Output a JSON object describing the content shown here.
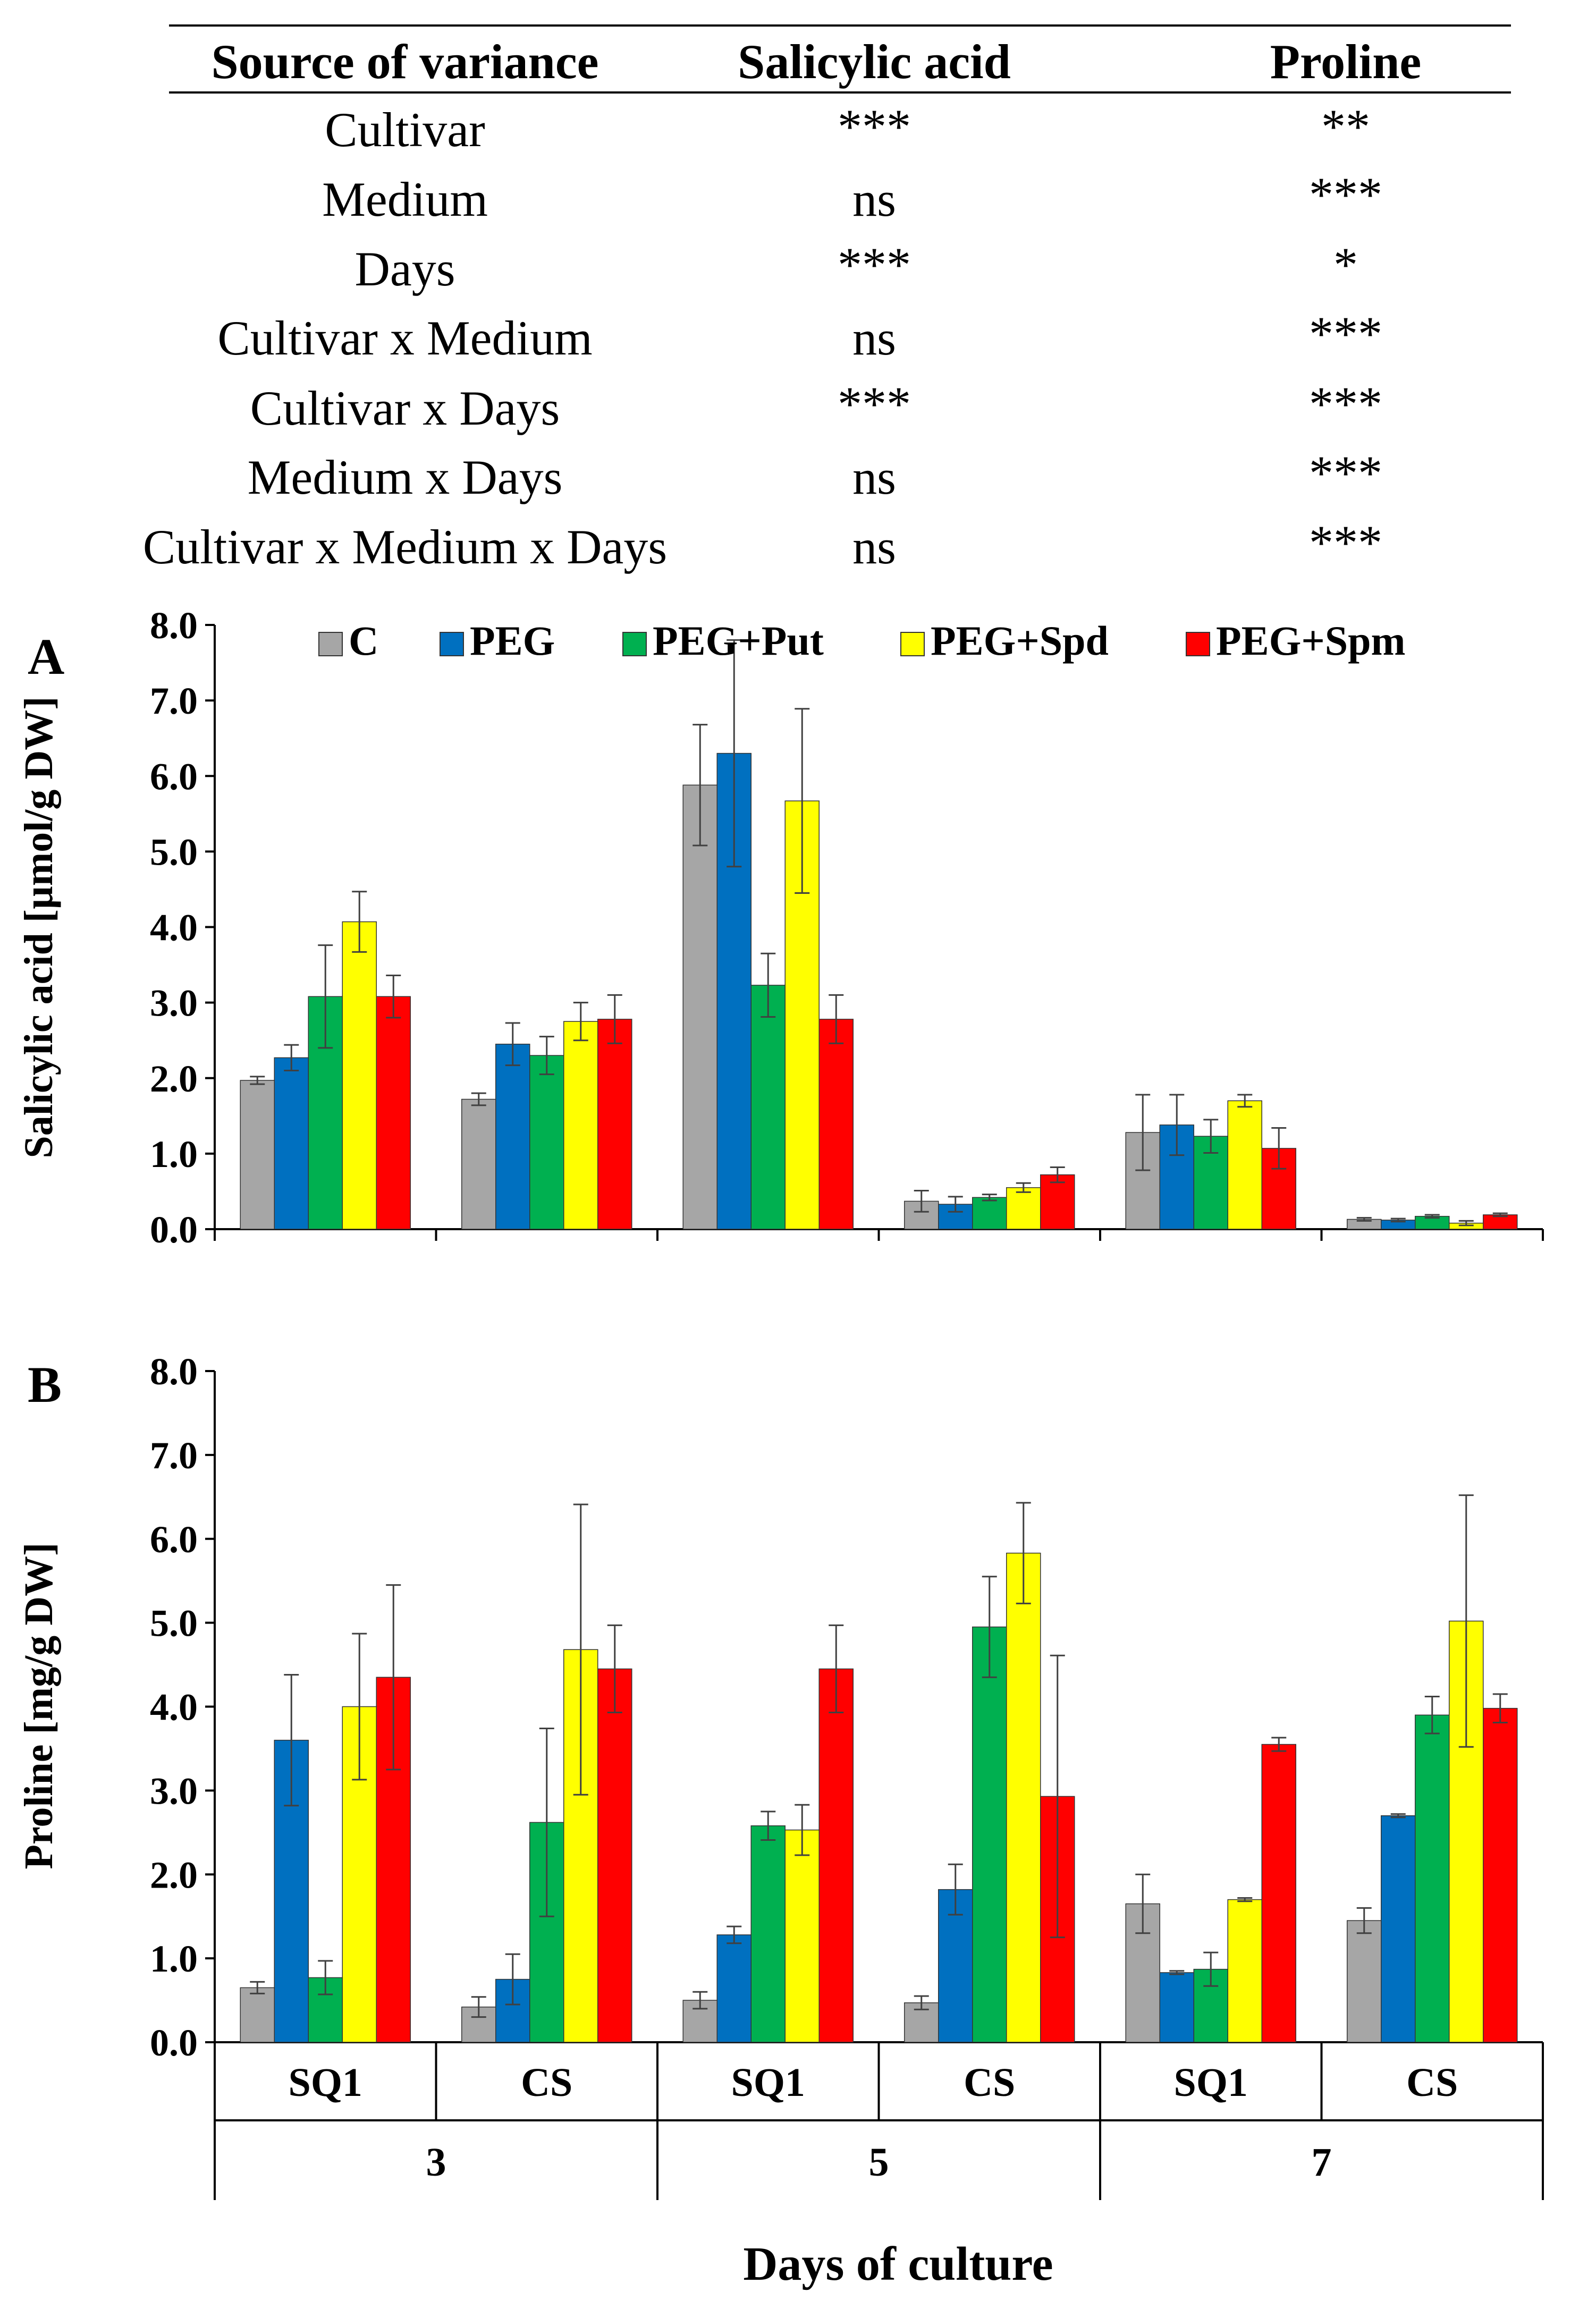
{
  "table": {
    "headers": [
      "Source of variance",
      "Salicylic acid",
      "Proline"
    ],
    "rows": [
      {
        "source": "Cultivar",
        "sa": "***",
        "pro": "**"
      },
      {
        "source": "Medium",
        "sa": "ns",
        "pro": "***"
      },
      {
        "source": "Days",
        "sa": "***",
        "pro": "*"
      },
      {
        "source": "Cultivar x Medium",
        "sa": "ns",
        "pro": "***"
      },
      {
        "source": "Cultivar x Days",
        "sa": "***",
        "pro": "***"
      },
      {
        "source": "Medium x Days",
        "sa": "ns",
        "pro": "***"
      },
      {
        "source": "Cultivar x Medium x Days",
        "sa": "ns",
        "pro": "***"
      }
    ]
  },
  "chart_data": [
    {
      "panel": "A",
      "type": "bar",
      "ylabel": "Salicylic acid [µmol/g DW]",
      "ylim": [
        0,
        8
      ],
      "yticks": [
        "0.0",
        "1.0",
        "2.0",
        "3.0",
        "4.0",
        "5.0",
        "6.0",
        "7.0",
        "8.0"
      ],
      "legend": "top",
      "categories": [
        "SQ1",
        "CS",
        "SQ1",
        "CS",
        "SQ1",
        "CS"
      ],
      "groups": [
        "3",
        "5",
        "7"
      ],
      "series": [
        {
          "name": "C",
          "color": "#A6A6A6",
          "values": [
            1.97,
            1.72,
            5.88,
            0.37,
            1.28,
            0.13
          ],
          "errors": [
            0.05,
            0.08,
            0.8,
            0.14,
            0.5,
            0.02
          ]
        },
        {
          "name": "PEG",
          "color": "#0070C0",
          "values": [
            2.27,
            2.45,
            6.3,
            0.33,
            1.38,
            0.12
          ],
          "errors": [
            0.17,
            0.28,
            1.5,
            0.1,
            0.4,
            0.02
          ]
        },
        {
          "name": "PEG+Put",
          "color": "#00B050",
          "values": [
            3.08,
            2.3,
            3.23,
            0.42,
            1.23,
            0.17
          ],
          "errors": [
            0.68,
            0.25,
            0.42,
            0.04,
            0.22,
            0.02
          ]
        },
        {
          "name": "PEG+Spd",
          "color": "#FFFF00",
          "values": [
            4.07,
            2.75,
            5.67,
            0.55,
            1.7,
            0.08
          ],
          "errors": [
            0.4,
            0.25,
            1.22,
            0.06,
            0.08,
            0.03
          ]
        },
        {
          "name": "PEG+Spm",
          "color": "#FF0000",
          "values": [
            3.08,
            2.78,
            2.78,
            0.72,
            1.07,
            0.19
          ],
          "errors": [
            0.28,
            0.32,
            0.32,
            0.1,
            0.27,
            0.02
          ]
        }
      ]
    },
    {
      "panel": "B",
      "type": "bar",
      "ylabel": "Proline [mg/g DW]",
      "xlabel": "Days of culture",
      "ylim": [
        0,
        8
      ],
      "yticks": [
        "0.0",
        "1.0",
        "2.0",
        "3.0",
        "4.0",
        "5.0",
        "6.0",
        "7.0",
        "8.0"
      ],
      "categories": [
        "SQ1",
        "CS",
        "SQ1",
        "CS",
        "SQ1",
        "CS"
      ],
      "groups": [
        "3",
        "5",
        "7"
      ],
      "series": [
        {
          "name": "C",
          "color": "#A6A6A6",
          "values": [
            0.65,
            0.42,
            0.5,
            0.47,
            1.65,
            1.45
          ],
          "errors": [
            0.07,
            0.12,
            0.1,
            0.08,
            0.35,
            0.15
          ]
        },
        {
          "name": "PEG",
          "color": "#0070C0",
          "values": [
            3.6,
            0.75,
            1.28,
            1.82,
            0.83,
            2.7
          ],
          "errors": [
            0.78,
            0.3,
            0.1,
            0.3,
            0.02,
            0.02
          ]
        },
        {
          "name": "PEG+Put",
          "color": "#00B050",
          "values": [
            0.77,
            2.62,
            2.58,
            4.95,
            0.87,
            3.9
          ],
          "errors": [
            0.2,
            1.12,
            0.17,
            0.6,
            0.2,
            0.22
          ]
        },
        {
          "name": "PEG+Spd",
          "color": "#FFFF00",
          "values": [
            4.0,
            4.68,
            2.53,
            5.83,
            1.7,
            5.02
          ],
          "errors": [
            0.87,
            1.73,
            0.3,
            0.6,
            0.02,
            1.5
          ]
        },
        {
          "name": "PEG+Spm",
          "color": "#FF0000",
          "values": [
            4.35,
            4.45,
            4.45,
            2.93,
            3.55,
            3.98
          ],
          "errors": [
            1.1,
            0.52,
            0.52,
            1.68,
            0.08,
            0.17
          ]
        }
      ]
    }
  ]
}
